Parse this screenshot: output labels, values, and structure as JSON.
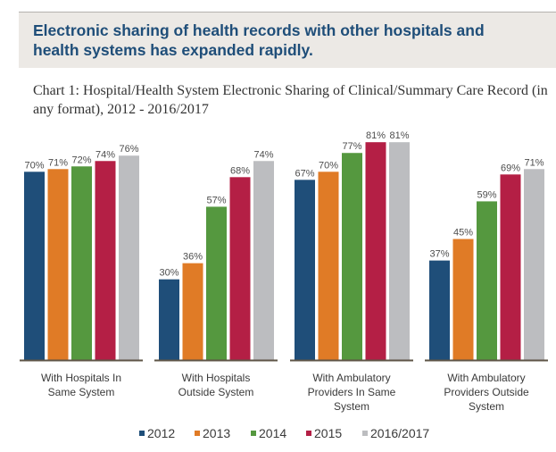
{
  "header": {
    "headline": "Electronic sharing of health records with other hospitals and health systems has expanded rapidly."
  },
  "chart_data": {
    "type": "bar",
    "title": "Chart 1: Hospital/Health System Electronic Sharing of Clinical/Summary Care Record (in any format), 2012 - 2016/2017",
    "xlabel": "",
    "ylabel": "",
    "ylim": [
      0,
      80
    ],
    "grid": false,
    "legend_position": "bottom",
    "categories": [
      [
        "With Hospitals In",
        "Same System"
      ],
      [
        "With Hospitals",
        "Outside System"
      ],
      [
        "With Ambulatory",
        "Providers In Same",
        "System"
      ],
      [
        "With Ambulatory",
        "Providers Outside",
        "System"
      ]
    ],
    "series": [
      {
        "name": "2012",
        "color": "#1f4e79",
        "values": [
          70,
          30,
          67,
          37
        ]
      },
      {
        "name": "2013",
        "color": "#e07b26",
        "values": [
          71,
          36,
          70,
          45
        ]
      },
      {
        "name": "2014",
        "color": "#55983f",
        "values": [
          72,
          57,
          77,
          59
        ]
      },
      {
        "name": "2015",
        "color": "#b41f45",
        "values": [
          74,
          68,
          81,
          69
        ]
      },
      {
        "name": "2016/2017",
        "color": "#bcbdc0",
        "values": [
          76,
          74,
          81,
          71
        ]
      }
    ],
    "value_suffix": "%",
    "axis_color": "#5e5446"
  }
}
